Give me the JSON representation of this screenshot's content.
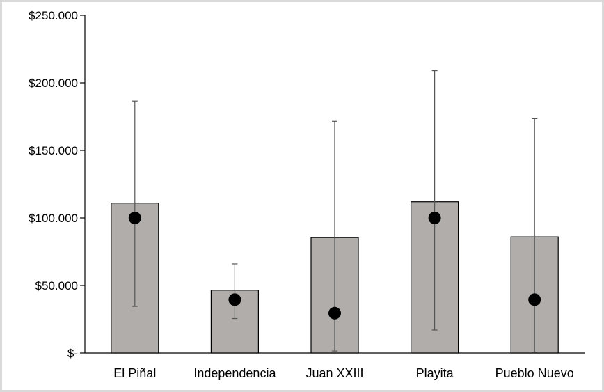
{
  "chart_data": {
    "type": "bar",
    "title": "",
    "xlabel": "",
    "ylabel": "",
    "categories": [
      "El Piñal",
      "Independencia",
      "Juan XXIII",
      "Playita",
      "Pueblo Nuevo"
    ],
    "series": [
      {
        "values": [
          111000,
          46500,
          85500,
          112000,
          86000
        ],
        "error_low": [
          34500,
          25500,
          1500,
          17000,
          500
        ],
        "error_high": [
          186500,
          66000,
          171500,
          209000,
          173500
        ]
      },
      {
        "type": "scatter",
        "values": [
          100000,
          39500,
          29500,
          100000,
          39500
        ]
      }
    ],
    "ylim": [
      0,
      250000
    ],
    "yticks": [
      0,
      50000,
      100000,
      150000,
      200000,
      250000
    ],
    "ytick_labels": [
      "$-",
      "$50.000",
      "$100.000",
      "$150.000",
      "$200.000",
      "$250.000"
    ],
    "grid": false,
    "legend": "none",
    "colors": {
      "bar_fill": "#b0adaa",
      "bar_stroke": "#000000",
      "error_bar": "#555555",
      "marker": "#000000"
    }
  }
}
